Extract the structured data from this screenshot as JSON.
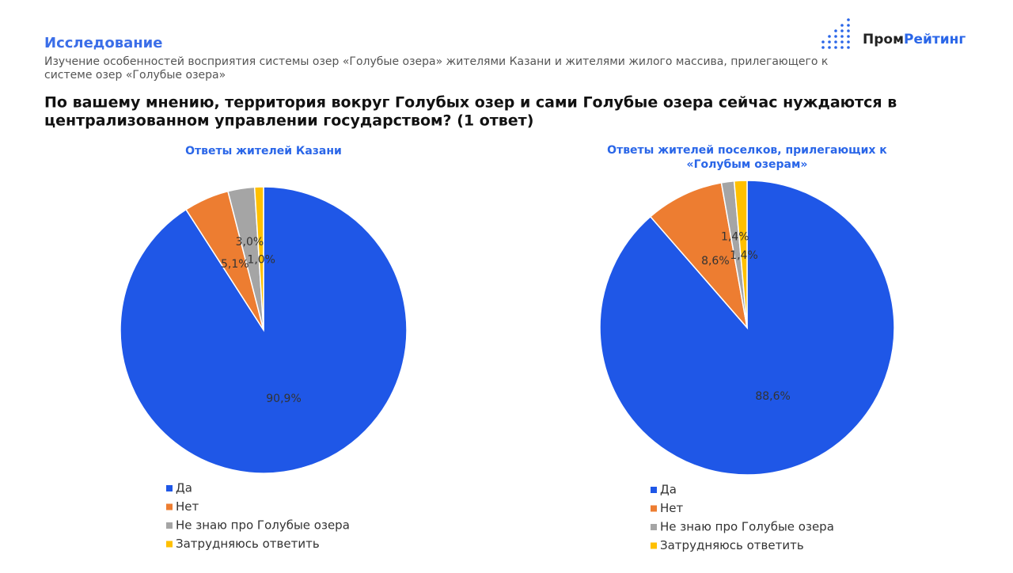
{
  "header": {
    "section": "Исследование",
    "subtitle_lines": [
      "Изучение особенностей восприятия системы озер «Голубые озера» жителями Казани и жителями жилого массива, прилегающего к",
      "системе озер «Голубые озера»"
    ],
    "question_lines": [
      "По вашему мнению, территория вокруг Голубых озер и сами Голубые озера сейчас нуждаются в",
      "централизованном управлении государством? (1 ответ)"
    ],
    "logo_parts": [
      "Пром",
      "Рейтинг"
    ]
  },
  "chart_data": [
    {
      "type": "pie",
      "title": [
        "Ответы жителей Казани"
      ],
      "categories": [
        "Да",
        "Нет",
        "Не знаю про Голубые озера",
        "Затрудняюсь ответить"
      ],
      "values": [
        90.9,
        5.1,
        3.0,
        1.0
      ],
      "value_labels": [
        "90,9%",
        "5,1%",
        "3,0%",
        "1,0%"
      ],
      "colors": [
        "#1f57e7",
        "#ed7d31",
        "#a5a5a5",
        "#ffc000"
      ]
    },
    {
      "type": "pie",
      "title": [
        "Ответы жителей поселков, прилегающих к",
        "«Голубым озерам»"
      ],
      "categories": [
        "Да",
        "Нет",
        "Не знаю про Голубые озера",
        "Затрудняюсь ответить"
      ],
      "values": [
        88.6,
        8.6,
        1.4,
        1.4
      ],
      "value_labels": [
        "88,6%",
        "8,6%",
        "1,4%",
        "1,4%"
      ],
      "colors": [
        "#1f57e7",
        "#ed7d31",
        "#a5a5a5",
        "#ffc000"
      ]
    }
  ]
}
